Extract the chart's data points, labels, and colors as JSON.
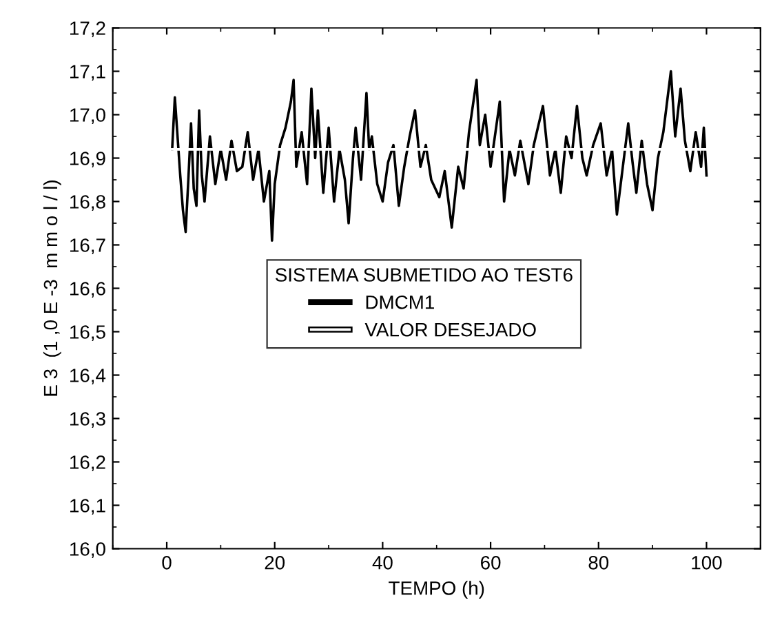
{
  "chart_data": {
    "type": "line",
    "xlabel": "TEMPO (h)",
    "ylabel": "E 3  (1 ,0 E -3  m m o l / l)",
    "legend_title": "SISTEMA SUBMETIDO AO TEST6",
    "legend": "center left",
    "grid": false,
    "xlim": [
      -10,
      110
    ],
    "xticks": [
      0,
      20,
      40,
      60,
      80,
      100
    ],
    "ylim": [
      16.0,
      17.2
    ],
    "yticks": [
      {
        "value": 16.0,
        "label": "16,0"
      },
      {
        "value": 16.1,
        "label": "16,1"
      },
      {
        "value": 16.2,
        "label": "16,2"
      },
      {
        "value": 16.3,
        "label": "16,3"
      },
      {
        "value": 16.4,
        "label": "16,4"
      },
      {
        "value": 16.5,
        "label": "16,5"
      },
      {
        "value": 16.6,
        "label": "16,6"
      },
      {
        "value": 16.7,
        "label": "16,7"
      },
      {
        "value": 16.8,
        "label": "16,8"
      },
      {
        "value": 16.9,
        "label": "16,9"
      },
      {
        "value": 17.0,
        "label": "17,0"
      },
      {
        "value": 17.1,
        "label": "17,1"
      },
      {
        "value": 17.2,
        "label": "17,2"
      }
    ],
    "series": [
      {
        "name": "DMCM1",
        "color": "#000000",
        "x": [
          1,
          1.5,
          2,
          2.5,
          3,
          3.5,
          4,
          4.5,
          5,
          5.5,
          6,
          6.5,
          7,
          8,
          9,
          10,
          11,
          12,
          13,
          14,
          15,
          16,
          17,
          18,
          19,
          19.5,
          20,
          21,
          22,
          23,
          23.5,
          24,
          25,
          26,
          26.8,
          27.5,
          28,
          29,
          30,
          31,
          32,
          33,
          33.7,
          34.5,
          35,
          36,
          37,
          37.5,
          38,
          39,
          40,
          41,
          42,
          43,
          44,
          45,
          46,
          47,
          48,
          49,
          50.5,
          51.5,
          52.8,
          54,
          55,
          56,
          57.4,
          58,
          59,
          60,
          61.7,
          62.5,
          63.5,
          64.5,
          65.5,
          67,
          68,
          69.7,
          71,
          72,
          73,
          74,
          75,
          76,
          77,
          77.8,
          79,
          80.4,
          81.5,
          82.5,
          83.4,
          84.5,
          85.5,
          86.3,
          87,
          88,
          89,
          90,
          91,
          92,
          93.4,
          94.2,
          95.2,
          96,
          97,
          98,
          99,
          99.5,
          100
        ],
        "values": [
          16.92,
          17.04,
          16.95,
          16.86,
          16.78,
          16.73,
          16.85,
          16.98,
          16.83,
          16.79,
          17.01,
          16.86,
          16.8,
          16.95,
          16.84,
          16.92,
          16.85,
          16.94,
          16.87,
          16.88,
          16.96,
          16.85,
          16.92,
          16.8,
          16.87,
          16.71,
          16.84,
          16.93,
          16.97,
          17.03,
          17.08,
          16.88,
          16.96,
          16.84,
          17.06,
          16.9,
          17.01,
          16.82,
          16.97,
          16.8,
          16.92,
          16.85,
          16.75,
          16.9,
          16.97,
          16.85,
          17.05,
          16.92,
          16.95,
          16.84,
          16.8,
          16.89,
          16.93,
          16.79,
          16.88,
          16.95,
          17.01,
          16.88,
          16.93,
          16.85,
          16.81,
          16.87,
          16.74,
          16.88,
          16.83,
          16.96,
          17.08,
          16.93,
          17.0,
          16.88,
          17.03,
          16.8,
          16.92,
          16.86,
          16.94,
          16.84,
          16.93,
          17.02,
          16.86,
          16.92,
          16.82,
          16.95,
          16.9,
          17.02,
          16.9,
          16.86,
          16.93,
          16.98,
          16.86,
          16.92,
          16.77,
          16.88,
          16.98,
          16.89,
          16.82,
          16.94,
          16.84,
          16.78,
          16.9,
          16.96,
          17.1,
          16.95,
          17.06,
          16.94,
          16.87,
          16.96,
          16.88,
          16.97,
          16.86
        ]
      },
      {
        "name": "VALOR DESEJADO",
        "color": "#ffffff",
        "x": [
          1,
          100
        ],
        "values": [
          16.92,
          16.92
        ]
      }
    ]
  }
}
